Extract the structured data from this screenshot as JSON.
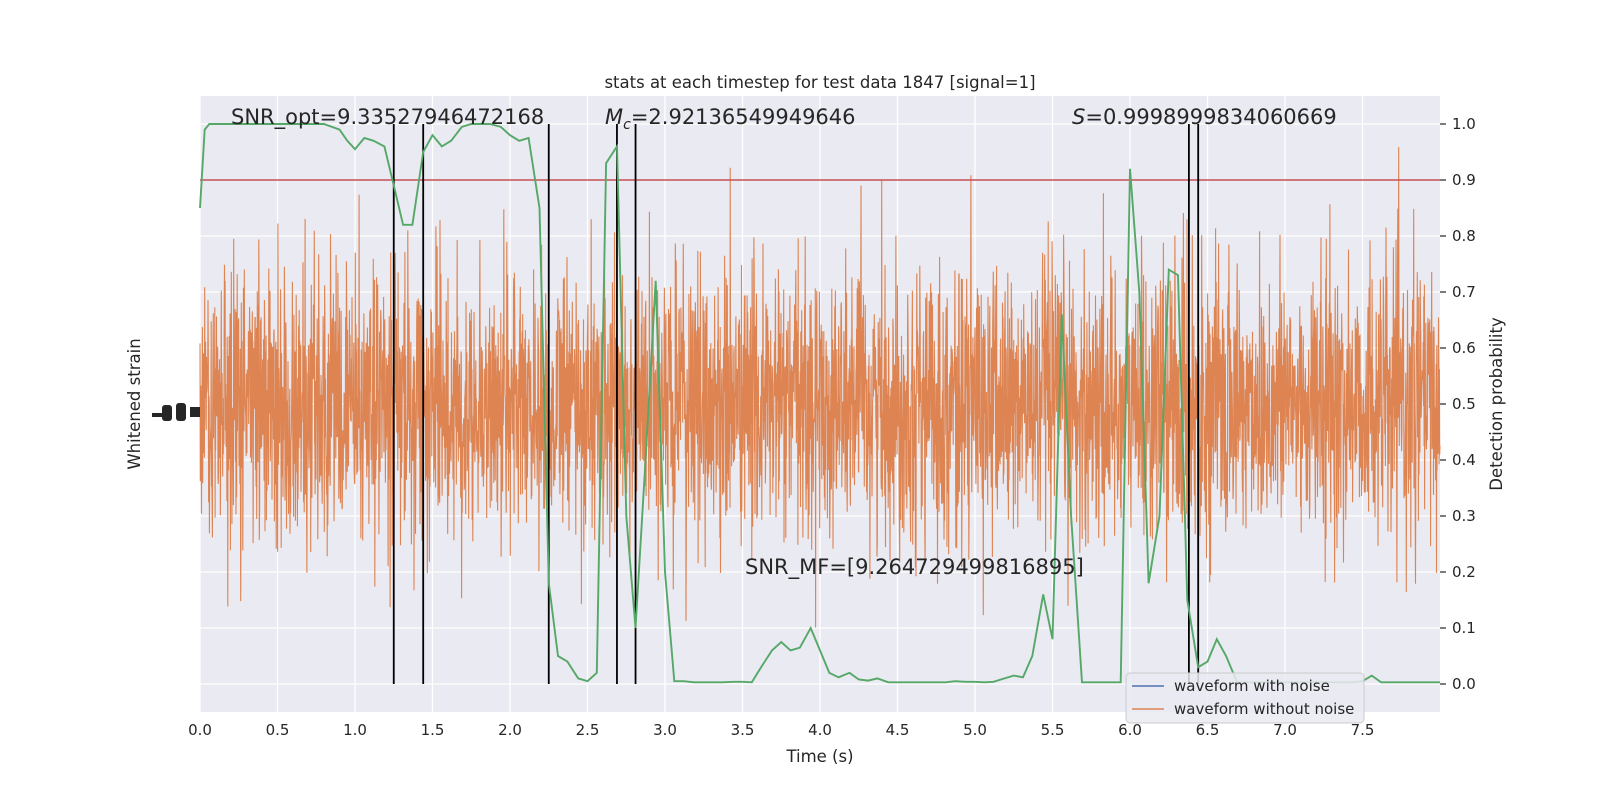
{
  "chart_data": {
    "type": "line",
    "title": "stats at each timestep for test data 1847 [signal=1]",
    "xlabel": "Time (s)",
    "ylabel_left": "Whitened strain",
    "ylabel_right": "Detection probability",
    "xlim": [
      0.0,
      8.0
    ],
    "ylim_right": [
      -0.05,
      1.05
    ],
    "grid": true,
    "legend_position": "bottom-right",
    "x_ticks": [
      "0.0",
      "0.5",
      "1.0",
      "1.5",
      "2.0",
      "2.5",
      "3.0",
      "3.5",
      "4.0",
      "4.5",
      "5.0",
      "5.5",
      "6.0",
      "6.5",
      "7.0",
      "7.5"
    ],
    "x_tick_values": [
      0.0,
      0.5,
      1.0,
      1.5,
      2.0,
      2.5,
      3.0,
      3.5,
      4.0,
      4.5,
      5.0,
      5.5,
      6.0,
      6.5,
      7.0,
      7.5
    ],
    "y_right_ticks": [
      "0.0",
      "0.1",
      "0.2",
      "0.3",
      "0.4",
      "0.5",
      "0.6",
      "0.7",
      "0.8",
      "0.9",
      "1.0"
    ],
    "y_right_tick_values": [
      0.0,
      0.1,
      0.2,
      0.3,
      0.4,
      0.5,
      0.6,
      0.7,
      0.8,
      0.9,
      1.0
    ],
    "annotations": {
      "snr_opt": "SNR_opt=9.33527946472168",
      "mc_symbol": "M",
      "mc_subscript": "c",
      "mc_value": "=2.92136549949646",
      "s_symbol": "S",
      "s_value": "=0.9998999834060669",
      "snr_mf": "SNR_MF=[9.264729499816895]"
    },
    "threshold": {
      "value": 0.9,
      "color": "#c44e52"
    },
    "vertical_lines_x": [
      1.25,
      1.44,
      2.25,
      2.69,
      2.81,
      6.38,
      6.44
    ],
    "strain": {
      "envelope_low": 0.0,
      "envelope_high": 1.0,
      "center": 0.5
    },
    "series": [
      {
        "name": "waveform with noise",
        "color": "#4c72b0"
      },
      {
        "name": "waveform without noise",
        "color": "#dd8452"
      },
      {
        "color": "#55a868",
        "x": [
          0.0,
          0.03,
          0.06,
          0.1,
          0.2,
          0.3,
          0.4,
          0.5,
          0.6,
          0.7,
          0.8,
          0.9,
          0.95,
          1.0,
          1.06,
          1.12,
          1.19,
          1.25,
          1.31,
          1.37,
          1.44,
          1.5,
          1.56,
          1.62,
          1.69,
          1.75,
          1.81,
          1.87,
          1.94,
          2.0,
          2.06,
          2.12,
          2.19,
          2.25,
          2.31,
          2.37,
          2.44,
          2.5,
          2.56,
          2.62,
          2.69,
          2.75,
          2.81,
          2.87,
          2.94,
          3.0,
          3.06,
          3.12,
          3.19,
          3.25,
          3.31,
          3.37,
          3.44,
          3.5,
          3.56,
          3.62,
          3.69,
          3.75,
          3.81,
          3.87,
          3.94,
          4.0,
          4.06,
          4.12,
          4.19,
          4.25,
          4.31,
          4.37,
          4.44,
          4.5,
          4.56,
          4.62,
          4.69,
          4.75,
          4.81,
          4.87,
          4.94,
          5.0,
          5.06,
          5.12,
          5.19,
          5.25,
          5.31,
          5.37,
          5.44,
          5.5,
          5.56,
          5.62,
          5.69,
          5.75,
          5.81,
          5.87,
          5.94,
          6.0,
          6.06,
          6.12,
          6.19,
          6.25,
          6.31,
          6.37,
          6.44,
          6.5,
          6.56,
          6.62,
          6.69,
          6.75,
          6.81,
          6.87,
          6.94,
          7.0,
          7.06,
          7.12,
          7.19,
          7.25,
          7.31,
          7.37,
          7.44,
          7.5,
          7.56,
          7.62,
          7.69,
          7.75,
          7.81,
          7.87,
          7.94,
          8.0
        ],
        "y": [
          0.85,
          0.99,
          1.0,
          1.0,
          1.0,
          1.0,
          1.0,
          1.0,
          1.0,
          1.0,
          1.0,
          0.99,
          0.97,
          0.955,
          0.975,
          0.97,
          0.96,
          0.89,
          0.82,
          0.82,
          0.95,
          0.98,
          0.96,
          0.97,
          0.995,
          1.0,
          1.0,
          1.0,
          0.995,
          0.98,
          0.97,
          0.975,
          0.85,
          0.18,
          0.05,
          0.04,
          0.01,
          0.005,
          0.02,
          0.93,
          0.96,
          0.3,
          0.1,
          0.38,
          0.72,
          0.2,
          0.005,
          0.005,
          0.003,
          0.003,
          0.003,
          0.003,
          0.004,
          0.004,
          0.003,
          0.03,
          0.06,
          0.075,
          0.06,
          0.065,
          0.1,
          0.06,
          0.02,
          0.012,
          0.02,
          0.008,
          0.006,
          0.01,
          0.003,
          0.003,
          0.003,
          0.003,
          0.003,
          0.003,
          0.003,
          0.005,
          0.004,
          0.004,
          0.003,
          0.004,
          0.01,
          0.015,
          0.012,
          0.05,
          0.16,
          0.08,
          0.66,
          0.3,
          0.003,
          0.003,
          0.003,
          0.003,
          0.003,
          0.92,
          0.7,
          0.18,
          0.3,
          0.74,
          0.73,
          0.15,
          0.03,
          0.04,
          0.08,
          0.05,
          0.003,
          0.003,
          0.003,
          0.003,
          0.003,
          0.003,
          0.003,
          0.003,
          0.003,
          0.003,
          0.003,
          0.003,
          0.003,
          0.005,
          0.015,
          0.003,
          0.003,
          0.003,
          0.003,
          0.003,
          0.003,
          0.003
        ]
      }
    ]
  }
}
